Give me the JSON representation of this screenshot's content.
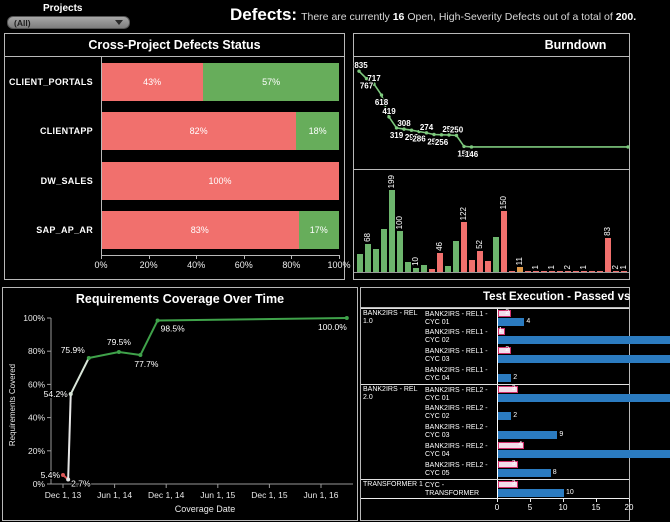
{
  "header": {
    "projects_label": "Projects",
    "projects_value": "(All)",
    "defects_title": "Defects:",
    "defects_text_1": "There are currently ",
    "defects_count": "16",
    "defects_text_2": " Open, High-Severity Defects ",
    "defects_text_3": "out of a total of ",
    "defects_total": "200."
  },
  "panels": {
    "defects_status_title": "Cross-Project Defects Status",
    "burndown_title": "Burndown",
    "coverage_title": "Requirements Coverage Over Time",
    "coverage_ylabel": "Requirements Covered",
    "coverage_xlabel": "Coverage Date",
    "test_exec_title": "Test Execution - Passed vs"
  },
  "chart_data": [
    {
      "id": "cross_project_defects_status",
      "type": "bar",
      "orientation": "horizontal",
      "title": "Cross-Project Defects Status",
      "categories": [
        "CLIENT_PORTALS",
        "CLIENTAPP",
        "DW_SALES",
        "SAP_AP_AR"
      ],
      "series": [
        {
          "name": "open",
          "color": "#f1706d",
          "values": [
            43,
            82,
            100,
            83
          ]
        },
        {
          "name": "closed",
          "color": "#67ad5b",
          "values": [
            57,
            18,
            0,
            17
          ]
        }
      ],
      "x_ticks": [
        "0%",
        "20%",
        "40%",
        "60%",
        "80%",
        "100%"
      ],
      "xlim": [
        0,
        100
      ]
    },
    {
      "id": "burndown_line",
      "type": "line",
      "title": "Burndown",
      "color": "#7dc87d",
      "values": [
        835,
        767,
        717,
        618,
        419,
        319,
        308,
        298,
        286,
        274,
        259,
        256,
        255,
        250,
        151,
        146
      ],
      "label_position": [
        "up",
        "down",
        "up",
        "down",
        "up",
        "down",
        "up",
        "down",
        "down",
        "up",
        "down",
        "down",
        "up",
        "up",
        "down",
        "down"
      ],
      "tail_value": 146,
      "ylim": [
        0,
        900
      ]
    },
    {
      "id": "burndown_bars",
      "type": "bar",
      "colors": {
        "green": "#6db56d",
        "red": "#f1706d",
        "orange": "#e09a4a"
      },
      "ylim": [
        0,
        210
      ],
      "bars": [
        {
          "v": 45,
          "c": "green"
        },
        {
          "v": 68,
          "c": "green",
          "label": "68"
        },
        {
          "v": 55,
          "c": "green"
        },
        {
          "v": 105,
          "c": "green"
        },
        {
          "v": 199,
          "c": "green",
          "label": "199"
        },
        {
          "v": 100,
          "c": "green",
          "label": "100"
        },
        {
          "v": 25,
          "c": "green"
        },
        {
          "v": 10,
          "c": "green",
          "label": "10"
        },
        {
          "v": 18,
          "c": "green"
        },
        {
          "v": 8,
          "c": "red"
        },
        {
          "v": 46,
          "c": "red",
          "label": "46"
        },
        {
          "v": 15,
          "c": "green"
        },
        {
          "v": 75,
          "c": "green"
        },
        {
          "v": 122,
          "c": "red",
          "label": "122"
        },
        {
          "v": 30,
          "c": "red"
        },
        {
          "v": 52,
          "c": "red",
          "label": "52"
        },
        {
          "v": 28,
          "c": "red"
        },
        {
          "v": 85,
          "c": "green"
        },
        {
          "v": 150,
          "c": "red",
          "label": "150"
        },
        {
          "v": 3,
          "c": "red"
        },
        {
          "v": 11,
          "c": "orange",
          "label": "11"
        },
        {
          "v": 2,
          "c": "red"
        },
        {
          "v": 1,
          "c": "red",
          "label": "1"
        },
        {
          "v": 2,
          "c": "red"
        },
        {
          "v": 1,
          "c": "red",
          "label": "1"
        },
        {
          "v": 2,
          "c": "red"
        },
        {
          "v": 2,
          "c": "red",
          "label": "2"
        },
        {
          "v": 2,
          "c": "red"
        },
        {
          "v": 1,
          "c": "red",
          "label": "1"
        },
        {
          "v": 2,
          "c": "red"
        },
        {
          "v": 2,
          "c": "red"
        },
        {
          "v": 83,
          "c": "red",
          "label": "83"
        },
        {
          "v": 2,
          "c": "red",
          "label": "2"
        },
        {
          "v": 1,
          "c": "red",
          "label": "1"
        }
      ]
    },
    {
      "id": "requirements_coverage",
      "type": "line",
      "title": "Requirements Coverage Over Time",
      "xlabel": "Coverage Date",
      "ylabel": "Requirements Covered",
      "points": [
        {
          "x_months": 0,
          "value": 5.4,
          "label": "5.4%"
        },
        {
          "x_months": 0.6,
          "value": 2.7,
          "label": "2.7%"
        },
        {
          "x_months": 0.9,
          "value": 54.2,
          "label": "54.2%"
        },
        {
          "x_months": 3,
          "value": 75.9,
          "label": "75.9%"
        },
        {
          "x_months": 6.5,
          "value": 79.5,
          "label": "79.5%"
        },
        {
          "x_months": 9,
          "value": 77.7,
          "label": "77.7%"
        },
        {
          "x_months": 11,
          "value": 98.5,
          "label": "98.5%"
        },
        {
          "x_months": 33,
          "value": 100.0,
          "label": "100.0%"
        }
      ],
      "x_ticks": [
        "Dec 1, 13",
        "Jun 1, 14",
        "Dec 1, 14",
        "Jun 1, 15",
        "Dec 1, 15",
        "Jun 1, 16"
      ],
      "y_ticks": [
        "0%",
        "20%",
        "40%",
        "60%",
        "80%",
        "100%"
      ],
      "segment_colors": [
        "#d95757",
        "#e6e6e6",
        "#d9e6d9",
        "#3fa24a",
        "#3fa24a",
        "#3fa24a",
        "#3fa24a"
      ],
      "ylim": [
        0,
        100
      ]
    },
    {
      "id": "test_execution",
      "type": "bar",
      "orientation": "horizontal",
      "title": "Test Execution - Passed vs",
      "x_ticks": [
        "0",
        "5",
        "10",
        "15",
        "20"
      ],
      "xlim": [
        0,
        20
      ],
      "series_colors": {
        "secondary": "#f2dce9",
        "secondary_border": "#d12f6b",
        "primary": "#2b7bc0"
      },
      "groups": [
        {
          "label": "BANK2IRS - REL 1.0",
          "rows": [
            {
              "label": "BANK2IRS - REL1 - CYC 01",
              "secondary": 2,
              "secondary_label": "2",
              "primary": 4,
              "primary_label": "4"
            },
            {
              "label": "BANK2IRS - REL1 - CYC 02",
              "secondary": 1,
              "secondary_label": "1",
              "primary": 26,
              "primary_clipped": true
            },
            {
              "label": "BANK2IRS - REL1 - CYC 03",
              "secondary": 2,
              "secondary_label": "2",
              "primary": 26,
              "primary_clipped": true
            },
            {
              "label": "BANK2IRS - REL1 - CYC 04",
              "secondary": 0,
              "primary": 2,
              "primary_label": "2"
            }
          ]
        },
        {
          "label": "BANK2IRS - REL 2.0",
          "rows": [
            {
              "label": "BANK2IRS - REL2 - CYC 01",
              "secondary": 3,
              "secondary_label": "3",
              "primary": 26,
              "primary_clipped": true
            },
            {
              "label": "BANK2IRS - REL2 - CYC 02",
              "secondary": 0,
              "primary": 2,
              "primary_label": "2"
            },
            {
              "label": "BANK2IRS - REL2 - CYC 03",
              "secondary": 0,
              "primary": 9,
              "primary_label": "9"
            },
            {
              "label": "BANK2IRS - REL2 - CYC 04",
              "secondary": 4,
              "secondary_label": "4",
              "primary": 26,
              "primary_clipped": true
            },
            {
              "label": "BANK2IRS - REL2 - CYC 05",
              "secondary": 3,
              "secondary_label": "3",
              "primary": 8,
              "primary_label": "8"
            }
          ]
        },
        {
          "label": "TRANSFORMER 1",
          "rows": [
            {
              "label": "CYC - TRANSFORMER",
              "secondary": 3,
              "secondary_label": "3",
              "primary": 10,
              "primary_label": "10"
            }
          ]
        }
      ]
    }
  ]
}
